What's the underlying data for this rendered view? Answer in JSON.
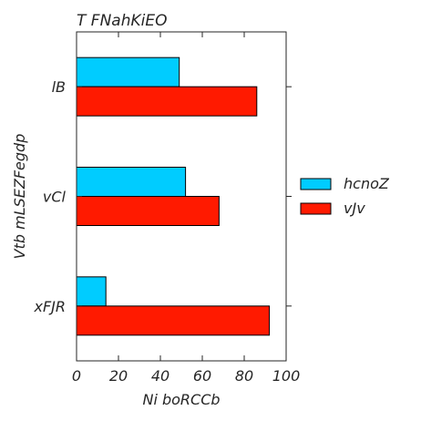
{
  "chart_data": {
    "type": "bar",
    "orientation": "horizontal",
    "title": "T FNahKiEO",
    "xlabel": "Ni boRCCb",
    "ylabel": "Vtb mLSEZFegdp",
    "xlim": [
      0,
      100
    ],
    "x_ticks": [
      "0",
      "20",
      "40",
      "60",
      "80",
      "100"
    ],
    "categories": [
      "lB",
      "vCl",
      "xFJR"
    ],
    "series": [
      {
        "name": "hcnoZ",
        "color": "#00ccff",
        "values": [
          49,
          52,
          14
        ]
      },
      {
        "name": "vJv",
        "color": "#ff1a00",
        "values": [
          86,
          68,
          92
        ]
      }
    ],
    "legend_position": "right",
    "grid": false
  }
}
